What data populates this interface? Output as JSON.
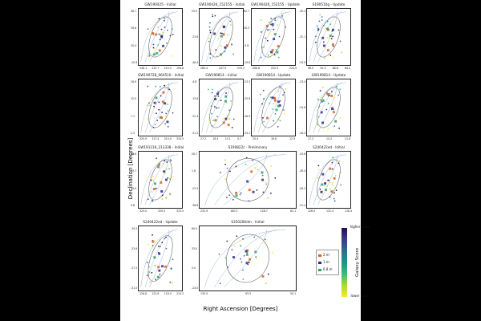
{
  "axes": {
    "xlabel": "Right Ascension [Degrees]",
    "ylabel": "Declination [Degrees]"
  },
  "legend": {
    "items": [
      {
        "label": "2 m",
        "color": "#d95f1a"
      },
      {
        "label": "1 m",
        "color": "#2a2a8c"
      },
      {
        "label": "0.8 m",
        "color": "#2e9e6a"
      }
    ]
  },
  "colorbar": {
    "title": "Galaxy Score",
    "top_label": "higher score",
    "bottom_label": "lower score",
    "colors": [
      "#2a0a55",
      "#3b3b8c",
      "#2e6d8e",
      "#21918c",
      "#3dbc74",
      "#a8db34",
      "#fde725"
    ]
  },
  "chart_data": [
    {
      "type": "scatter",
      "title": "GW190425 - Initial",
      "xticks": [
        "248.1",
        "222.7",
        "215.3",
        "194.8"
      ],
      "yticks": [
        "58.7",
        "39.6",
        "20.4",
        "-10.9"
      ]
    },
    {
      "type": "scatter",
      "title": "GW190426_152155 - Initial",
      "xticks": [
        "285.4",
        "247.5",
        "233.3"
      ],
      "yticks": [
        "25.5",
        "-23.6",
        "-48.4"
      ]
    },
    {
      "type": "scatter",
      "title": "GW190426_152155 - Update",
      "xticks": [
        "266.8",
        "252.5",
        "224.5"
      ],
      "yticks": [
        "62.7",
        "30.3",
        "-3.8",
        "-19.6"
      ]
    },
    {
      "type": "scatter",
      "title": "S190510g - Update",
      "xticks": [
        "96.9",
        "92.3",
        "88.8",
        "84.2"
      ],
      "yticks": [
        "-30.3",
        "-32.1",
        "-34.9"
      ]
    },
    {
      "type": "scatter",
      "title": "GW190728_064510 - Initial",
      "xticks": [
        "320.9",
        "317.4",
        "314.0",
        "310.5"
      ],
      "yticks": [
        "16.9",
        "12.0",
        "7.1",
        "2.3"
      ]
    },
    {
      "type": "scatter",
      "title": "GW190814 - Initial",
      "xticks": [
        "27.2",
        "18.4",
        "10.1",
        "5.7"
      ],
      "yticks": [
        "-4.8",
        "-13.6",
        "-22.4",
        "-31.2"
      ]
    },
    {
      "type": "scatter",
      "title": "GW190814 - Update",
      "xticks": [
        "20.4",
        "16.6",
        "12.9"
      ],
      "yticks": [
        "-23.3",
        "-25.6",
        "-28.9",
        "-34.2"
      ]
    },
    {
      "type": "scatter",
      "title": "GW190814 - Update",
      "xticks": [
        "17.2",
        "14.2",
        "11.6"
      ],
      "yticks": [
        "-23.4",
        "-24.8",
        "-26.4"
      ]
    },
    {
      "type": "scatter",
      "title": "GW191216_213338 - Initial",
      "xticks": [
        "325.0",
        "320.0",
        "315.0"
      ],
      "yticks": [
        "42.6",
        "33.7",
        "19.4",
        "9.8"
      ]
    },
    {
      "type": "scatter",
      "title": "S190822c - Preliminary",
      "xticks": [
        "232.9",
        "180.3",
        "128.7",
        "62.1"
      ],
      "yticks": [
        "26.7",
        "1.6",
        "-22.5",
        "-38.8"
      ]
    },
    {
      "type": "scatter",
      "title": "S240422ed - Initial",
      "xticks": [
        "126.0",
        "122.4",
        "118.4"
      ],
      "yticks": [
        "-23.6",
        "-26.4",
        "-28.2",
        "-31.4"
      ]
    },
    {
      "type": "scatter",
      "title": "S240422ed - Update",
      "xticks": [
        "126.8",
        "122.6",
        "118.4",
        "114.2"
      ],
      "yticks": [
        "-19.2",
        "-23.6",
        "-27.2",
        "-31.0"
      ]
    },
    {
      "type": "scatter",
      "title": "S250206dm - Initial",
      "xticks": [
        "135.5",
        "93.5",
        "50.1"
      ],
      "yticks": [
        "60.0",
        "33.0",
        "5.0",
        "-23.0"
      ]
    }
  ]
}
